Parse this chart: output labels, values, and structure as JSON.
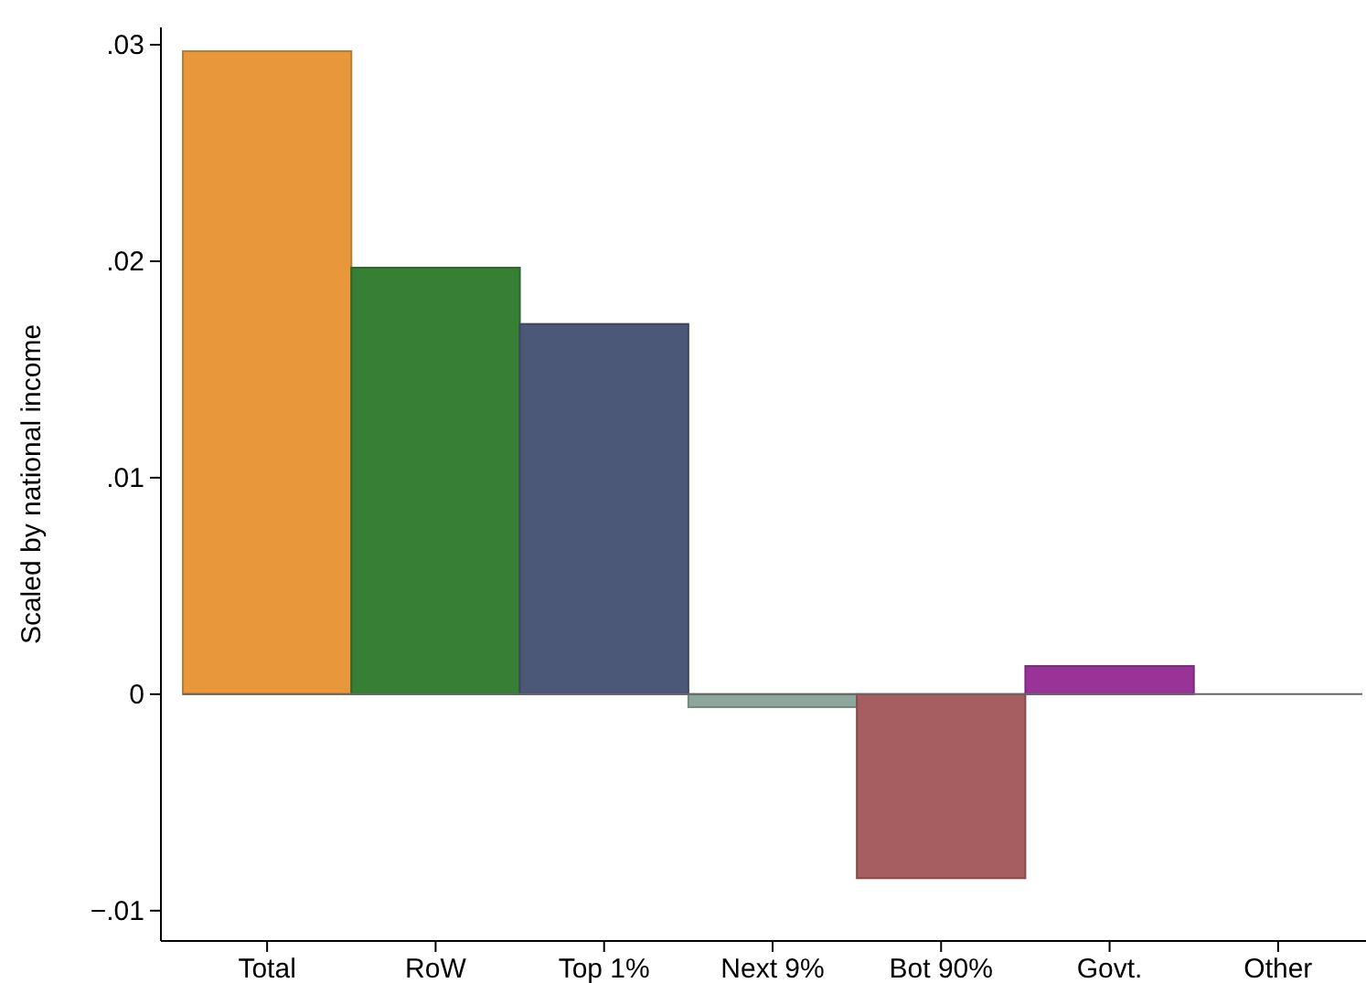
{
  "chart_data": {
    "type": "bar",
    "ylabel": "Scaled by national income",
    "categories": [
      "Total",
      "RoW",
      "Top 1%",
      "Next 9%",
      "Bot 90%",
      "Govt.",
      "Other"
    ],
    "values": [
      0.0297,
      0.0197,
      0.0171,
      -0.0006,
      -0.0085,
      0.0013,
      0
    ],
    "colors": [
      "#e8983a",
      "#367f35",
      "#4b5877",
      "#8ea79c",
      "#a65e60",
      "#9a3398",
      "#9a9a9a"
    ],
    "ylim": [
      -0.0114,
      0.0308
    ],
    "yticks": [
      {
        "value": -0.01,
        "label": "−.01"
      },
      {
        "value": 0,
        "label": "0"
      },
      {
        "value": 0.01,
        "label": ".01"
      },
      {
        "value": 0.02,
        "label": ".02"
      },
      {
        "value": 0.03,
        "label": ".03"
      }
    ],
    "ref_lines": [
      {
        "axis": "y",
        "value": 0,
        "color": "#666666"
      }
    ],
    "grid": false
  }
}
